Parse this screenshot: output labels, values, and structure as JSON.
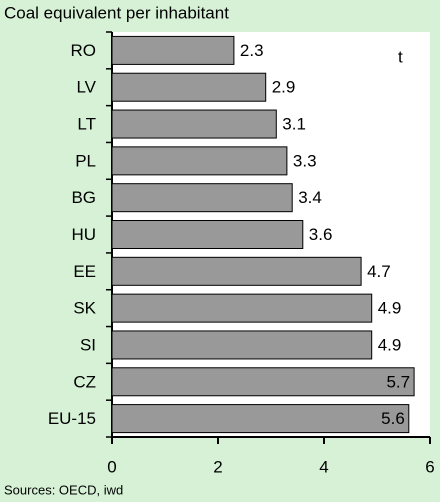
{
  "chart_data": {
    "type": "bar",
    "orientation": "horizontal",
    "title": "Coal equivalent per inhabitant",
    "unit": "t",
    "source": "Sources: OECD, iwd",
    "categories": [
      "RO",
      "LV",
      "LT",
      "PL",
      "BG",
      "HU",
      "EE",
      "SK",
      "SI",
      "CZ",
      "EU-15"
    ],
    "values": [
      2.3,
      2.9,
      3.1,
      3.3,
      3.4,
      3.6,
      4.7,
      4.9,
      4.9,
      5.7,
      5.6
    ],
    "color": "#999999",
    "xlim": [
      0,
      6
    ],
    "xticks": [
      0,
      2,
      4,
      6
    ],
    "grid": false
  }
}
